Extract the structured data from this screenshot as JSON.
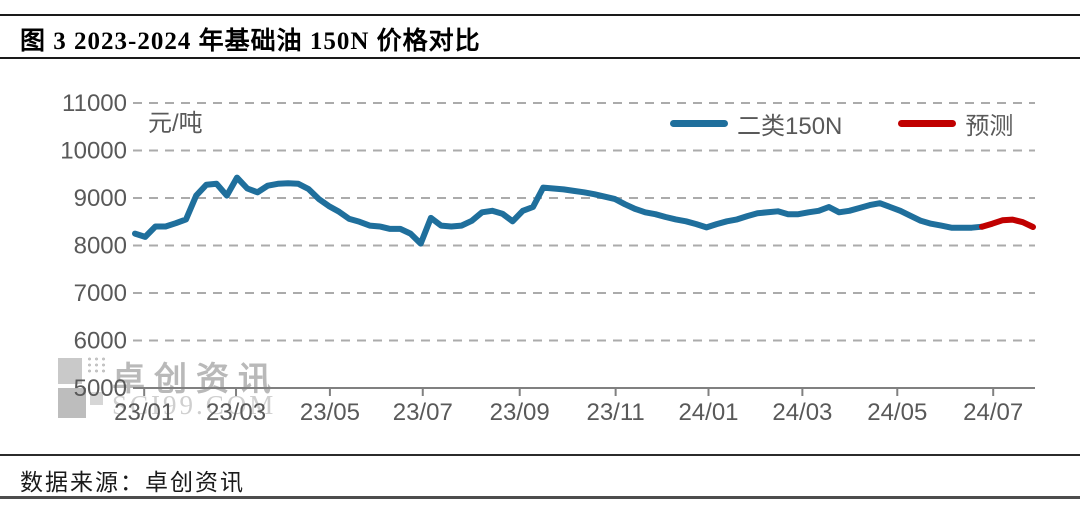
{
  "header": {
    "title": "图 3 2023-2024 年基础油 150N 价格对比"
  },
  "footer": {
    "source": "数据来源：卓创资讯"
  },
  "watermark": {
    "name": "卓创资讯",
    "domain": "SCI99.COM"
  },
  "colors": {
    "series_blue": "#1F6F9C",
    "series_red": "#C00000",
    "grid": "#ABABAB",
    "axis": "#808080",
    "tick_text": "#595959"
  },
  "chart_data": {
    "type": "line",
    "title": "图 3 2023-2024 年基础油 150N 价格对比",
    "unit_label": "元/吨",
    "ylabel": "元/吨",
    "ylim": [
      5000,
      11000
    ],
    "y_ticks": [
      5000,
      6000,
      7000,
      8000,
      9000,
      10000,
      11000
    ],
    "x_tick_labels": [
      "23/01",
      "23/03",
      "23/05",
      "23/07",
      "23/09",
      "23/11",
      "24/01",
      "24/03",
      "24/05",
      "24/07"
    ],
    "x_tick_positions_weeks": [
      0.9,
      9.9,
      19.1,
      28.2,
      37.7,
      47.1,
      56.2,
      65.4,
      74.7,
      84.1
    ],
    "x_range_weeks": [
      0,
      88
    ],
    "grid": "horizontal-dashed",
    "legend_position": "top-right-inside",
    "series": [
      {
        "name": "二类150N",
        "color": "#1F6F9C",
        "x_start_week": 0,
        "values": [
          8250,
          8180,
          8400,
          8400,
          8470,
          8550,
          9050,
          9280,
          9300,
          9050,
          9430,
          9200,
          9120,
          9260,
          9300,
          9310,
          9300,
          9190,
          8980,
          8830,
          8710,
          8560,
          8500,
          8420,
          8400,
          8350,
          8350,
          8250,
          8040,
          8580,
          8420,
          8400,
          8420,
          8520,
          8700,
          8730,
          8670,
          8510,
          8730,
          8810,
          9220,
          9200,
          9180,
          9150,
          9120,
          9080,
          9030,
          8980,
          8870,
          8770,
          8700,
          8660,
          8600,
          8550,
          8510,
          8450,
          8380,
          8450,
          8510,
          8550,
          8620,
          8680,
          8700,
          8720,
          8660,
          8660,
          8700,
          8730,
          8810,
          8700,
          8730,
          8790,
          8850,
          8890,
          8810,
          8730,
          8625,
          8520,
          8460,
          8420,
          8375,
          8375,
          8375,
          8395
        ]
      },
      {
        "name": "预测",
        "color": "#C00000",
        "x_start_week": 83,
        "values": [
          8395,
          8460,
          8530,
          8545,
          8490,
          8390
        ]
      }
    ]
  }
}
